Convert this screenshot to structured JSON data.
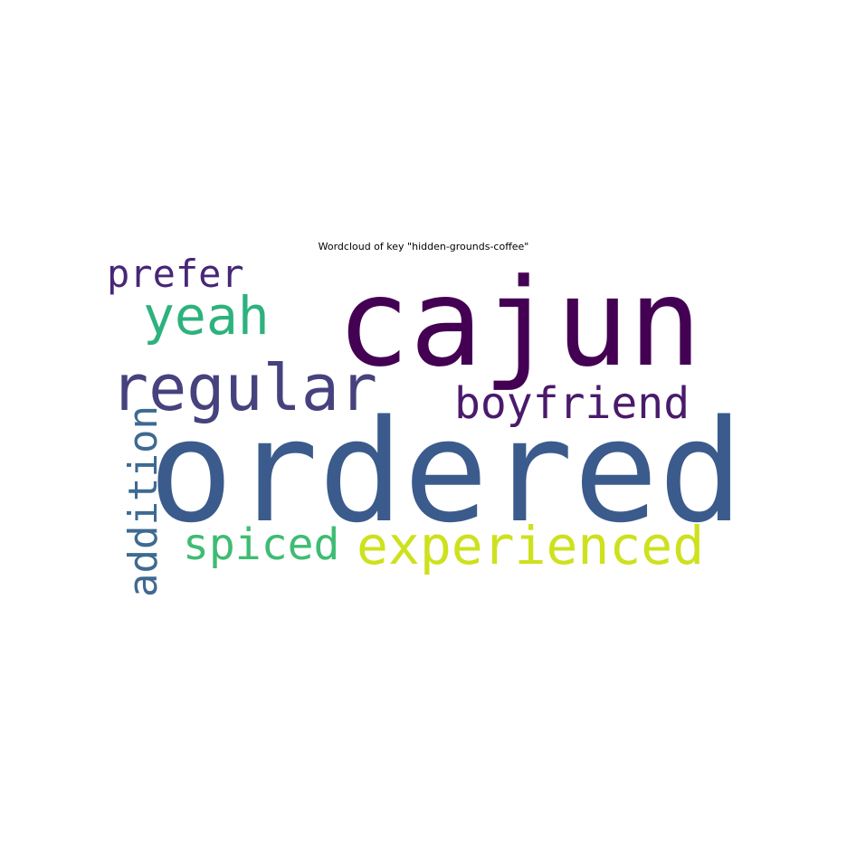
{
  "title": "Wordcloud of key \"hidden-grounds-coffee\"",
  "words": {
    "cajun": {
      "text": "cajun",
      "color": "#440154"
    },
    "ordered": {
      "text": "ordered",
      "color": "#3b5b8c"
    },
    "regular": {
      "text": "regular",
      "color": "#46427e"
    },
    "yeah": {
      "text": "yeah",
      "color": "#2db27d"
    },
    "prefer": {
      "text": "prefer",
      "color": "#482677"
    },
    "boyfriend": {
      "text": "boyfriend",
      "color": "#4a1a6b"
    },
    "experienced": {
      "text": "experienced",
      "color": "#cde11d"
    },
    "spiced": {
      "text": "spiced",
      "color": "#3fbc73"
    },
    "addition": {
      "text": "addition",
      "color": "#3e6a91"
    }
  }
}
